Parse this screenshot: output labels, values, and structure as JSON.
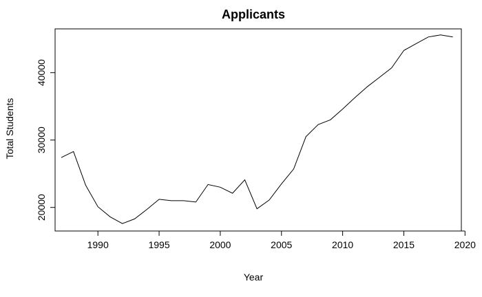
{
  "chart_data": {
    "type": "line",
    "title": "Applicants",
    "xlabel": "Year",
    "ylabel": "Total Students",
    "xlim": [
      1986.5,
      2019.7
    ],
    "ylim": [
      16500,
      46500
    ],
    "x_ticks": [
      1990,
      1995,
      2000,
      2005,
      2010,
      2015,
      2020
    ],
    "y_ticks": [
      20000,
      30000,
      40000
    ],
    "grid": false,
    "legend": "none",
    "series": [
      {
        "x": [
          1987,
          1988,
          1989,
          1990,
          1991,
          1992,
          1993,
          1994,
          1995,
          1996,
          1997,
          1998,
          1999,
          2000,
          2001,
          2002,
          2003,
          2004,
          2005,
          2006,
          2007,
          2008,
          2009,
          2010,
          2011,
          2012,
          2013,
          2014,
          2015,
          2016,
          2017,
          2018,
          2019
        ],
        "values": [
          27400,
          28300,
          23300,
          20100,
          18600,
          17600,
          18300,
          19700,
          21200,
          21000,
          21000,
          20800,
          23400,
          23000,
          22100,
          24100,
          19800,
          21100,
          23500,
          25700,
          30500,
          32300,
          33000,
          34600,
          36300,
          37900,
          39300,
          40700,
          43300,
          44300,
          45300,
          45600,
          45300
        ]
      }
    ]
  }
}
